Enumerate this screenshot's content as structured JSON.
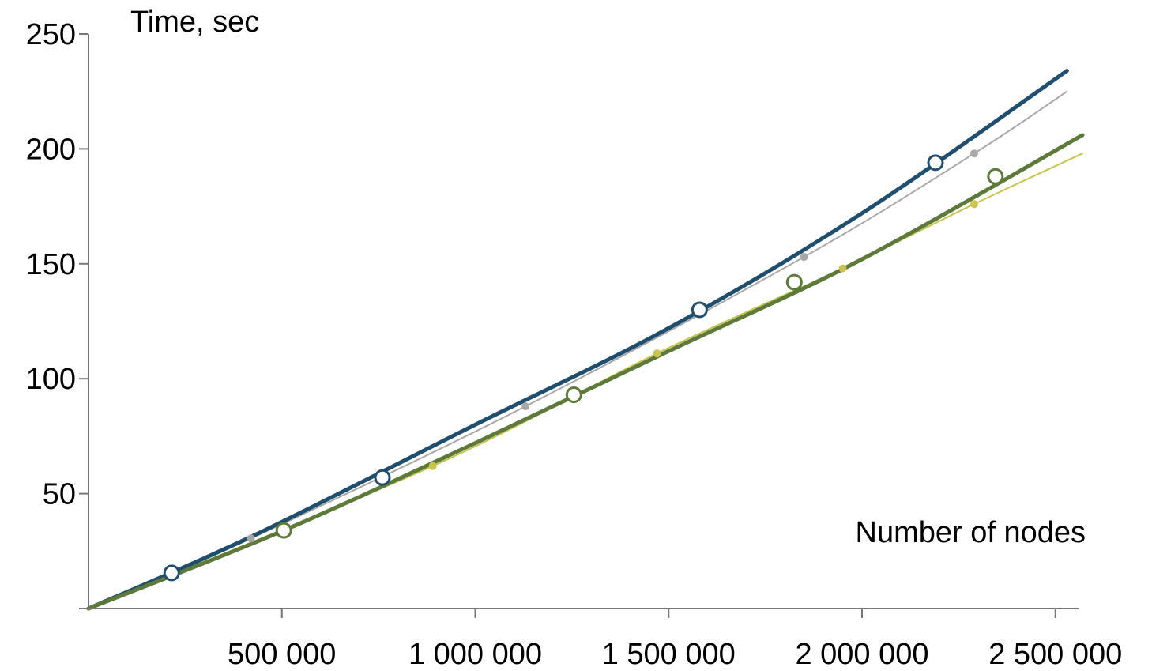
{
  "chart_data": {
    "type": "line",
    "title": "",
    "xlabel": "Number of nodes",
    "ylabel": "Time, sec",
    "xlim": [
      0,
      2570000
    ],
    "ylim": [
      0,
      250
    ],
    "x_ticks": [
      500000,
      1000000,
      1500000,
      2000000,
      2500000
    ],
    "x_tick_labels": [
      "500 000",
      "1 000 000",
      "1 500 000",
      "2 000 000",
      "2 500 000"
    ],
    "y_ticks": [
      50,
      100,
      150,
      200,
      250
    ],
    "y_tick_labels": [
      "50",
      "100",
      "150",
      "200",
      "250"
    ],
    "grid": false,
    "legend": "none",
    "series": [
      {
        "color": "#1f4e6e",
        "line_width": 5,
        "marker": "open-circle",
        "curve": [
          [
            0,
            0
          ],
          [
            430000,
            32
          ],
          [
            1000000,
            80
          ],
          [
            1500000,
            122
          ],
          [
            2000000,
            172
          ],
          [
            2530000,
            234
          ]
        ],
        "points": [
          [
            215000,
            15.5
          ],
          [
            760000,
            57
          ],
          [
            1580000,
            130
          ],
          [
            2190000,
            194
          ]
        ]
      },
      {
        "color": "#a8a8a8",
        "line_width": 2,
        "marker": "dot",
        "curve": [
          [
            0,
            0
          ],
          [
            420000,
            30.5
          ],
          [
            1130000,
            88
          ],
          [
            1850000,
            153
          ],
          [
            2290000,
            198
          ],
          [
            2530000,
            225
          ]
        ],
        "points": [
          [
            420000,
            30.5
          ],
          [
            1130000,
            88
          ],
          [
            1850000,
            153
          ],
          [
            2290000,
            198
          ]
        ]
      },
      {
        "color": "#5d7a3a",
        "line_width": 5,
        "marker": "open-circle",
        "curve": [
          [
            0,
            0
          ],
          [
            505000,
            34
          ],
          [
            1000000,
            72
          ],
          [
            1500000,
            112
          ],
          [
            2000000,
            152
          ],
          [
            2570000,
            206
          ]
        ],
        "points": [
          [
            505000,
            34
          ],
          [
            1255000,
            93
          ],
          [
            1825000,
            142
          ],
          [
            2345000,
            188
          ]
        ]
      },
      {
        "color": "#c9c44f",
        "line_width": 2,
        "marker": "dot",
        "curve": [
          [
            0,
            0
          ],
          [
            890000,
            62
          ],
          [
            1470000,
            111
          ],
          [
            1950000,
            148
          ],
          [
            2290000,
            176
          ],
          [
            2570000,
            198
          ]
        ],
        "points": [
          [
            890000,
            62
          ],
          [
            1470000,
            111
          ],
          [
            1950000,
            148
          ],
          [
            2290000,
            176
          ]
        ]
      }
    ]
  }
}
